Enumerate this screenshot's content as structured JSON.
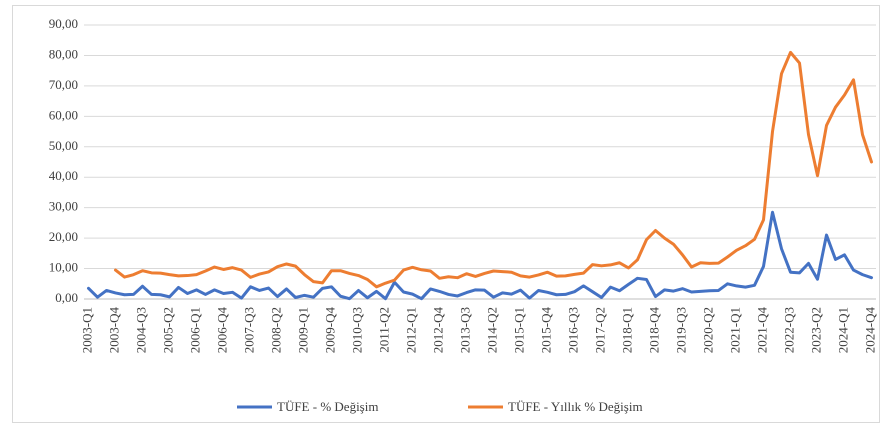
{
  "chart_data": {
    "type": "line",
    "categories": [
      "2003-Q1",
      null,
      null,
      "2003-Q4",
      null,
      null,
      "2004-Q3",
      null,
      null,
      "2005-Q2",
      null,
      null,
      "2006-Q1",
      null,
      null,
      "2006-Q4",
      null,
      null,
      "2007-Q3",
      null,
      null,
      "2008-Q2",
      null,
      null,
      "2009-Q1",
      null,
      null,
      "2009-Q4",
      null,
      null,
      "2010-Q3",
      null,
      null,
      "2011-Q2",
      null,
      null,
      "2012-Q1",
      null,
      null,
      "2012-Q4",
      null,
      null,
      "2013-Q3",
      null,
      null,
      "2014-Q2",
      null,
      null,
      "2015-Q1",
      null,
      null,
      "2015-Q4",
      null,
      null,
      "2016-Q3",
      null,
      null,
      "2017-Q2",
      null,
      null,
      "2018-Q1",
      null,
      null,
      "2018-Q4",
      null,
      null,
      "2019-Q3",
      null,
      null,
      "2020-Q2",
      null,
      null,
      "2021-Q1",
      null,
      null,
      "2021-Q4",
      null,
      null,
      "2022-Q3",
      null,
      null,
      "2023-Q2",
      null,
      null,
      "2024-Q1",
      null,
      null,
      "2024-Q4"
    ],
    "series": [
      {
        "name": "TÜFE - % Değişim",
        "color": "#4472c4",
        "values": [
          3.5,
          0.6,
          2.8,
          2.0,
          1.4,
          1.5,
          4.2,
          1.5,
          1.4,
          0.7,
          3.8,
          1.8,
          3.0,
          1.5,
          3.0,
          1.8,
          2.2,
          0.3,
          4.0,
          2.8,
          3.6,
          0.8,
          3.3,
          0.5,
          1.2,
          0.6,
          3.5,
          4.0,
          0.9,
          0.1,
          2.8,
          0.4,
          2.5,
          0.1,
          5.5,
          2.3,
          1.6,
          0.1,
          3.3,
          2.5,
          1.5,
          1.0,
          2.1,
          3.0,
          2.9,
          0.6,
          2.0,
          1.6,
          2.9,
          0.3,
          2.8,
          2.2,
          1.4,
          1.5,
          2.4,
          4.3,
          2.4,
          0.5,
          3.9,
          2.7,
          4.8,
          6.8,
          6.4,
          0.8,
          3.0,
          2.6,
          3.4,
          2.3,
          2.5,
          2.7,
          2.8,
          5.0,
          4.3,
          3.9,
          4.5,
          10.7,
          28.5,
          16.5,
          8.8,
          8.6,
          11.7,
          6.5,
          21.0,
          13.0,
          14.5,
          9.5,
          8.0,
          7.0
        ]
      },
      {
        "name": "TÜFE - Yıllık % Değişim",
        "color": "#ed7d31",
        "values": [
          null,
          null,
          null,
          9.5,
          7.2,
          8.0,
          9.3,
          8.6,
          8.5,
          8.0,
          7.6,
          7.7,
          8.0,
          9.2,
          10.5,
          9.7,
          10.3,
          9.5,
          7.1,
          8.2,
          8.9,
          10.6,
          11.5,
          10.8,
          8.0,
          5.7,
          5.3,
          9.3,
          9.3,
          8.4,
          7.7,
          6.4,
          4.0,
          5.2,
          6.2,
          9.5,
          10.4,
          9.6,
          9.2,
          6.8,
          7.3,
          7.0,
          8.3,
          7.4,
          8.4,
          9.2,
          9.0,
          8.8,
          7.6,
          7.2,
          7.9,
          8.8,
          7.5,
          7.6,
          8.1,
          8.5,
          11.3,
          10.9,
          11.2,
          11.9,
          10.2,
          12.9,
          19.5,
          22.5,
          20.0,
          18.0,
          14.5,
          10.5,
          11.9,
          11.7,
          11.8,
          13.8,
          16.0,
          17.5,
          19.6,
          26.0,
          55.0,
          74.0,
          81.0,
          77.5,
          54.0,
          40.5,
          57.0,
          63.0,
          67.0,
          72.0,
          54.0,
          45.0
        ]
      }
    ],
    "ylim": [
      0,
      90
    ],
    "yticks": [
      {
        "value": 0,
        "label": "0,00"
      },
      {
        "value": 10,
        "label": "10,00"
      },
      {
        "value": 20,
        "label": "20,00"
      },
      {
        "value": 30,
        "label": "30,00"
      },
      {
        "value": 40,
        "label": "40,00"
      },
      {
        "value": 50,
        "label": "50,00"
      },
      {
        "value": 60,
        "label": "60,00"
      },
      {
        "value": 70,
        "label": "70,00"
      },
      {
        "value": 80,
        "label": "80,00"
      },
      {
        "value": 90,
        "label": "90,00"
      }
    ],
    "grid": true,
    "legend": "bottom"
  }
}
